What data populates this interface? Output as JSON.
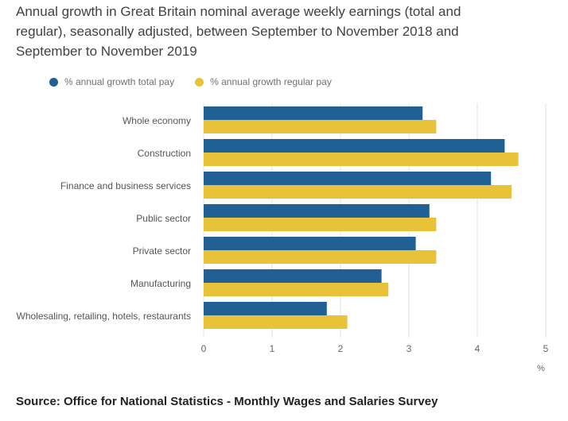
{
  "title": "Annual growth in Great Britain nominal average weekly earnings (total and regular), seasonally adjusted, between September to November 2018 and September to November 2019",
  "legend": [
    {
      "label": "% annual growth total pay",
      "color": "#206095"
    },
    {
      "label": "% annual growth regular pay",
      "color": "#e8c33a"
    }
  ],
  "source": "Source: Office for National Statistics - Monthly Wages and Salaries Survey",
  "chart_data": {
    "type": "bar",
    "orientation": "horizontal",
    "title": "Annual growth in Great Britain nominal average weekly earnings (total and regular), seasonally adjusted, between September to November 2018 and September to November 2019",
    "categories": [
      "Whole economy",
      "Construction",
      "Finance and business services",
      "Public sector",
      "Private sector",
      "Manufacturing",
      "Wholesaling, retailing, hotels, restaurants"
    ],
    "series": [
      {
        "name": "% annual growth total pay",
        "color": "#206095",
        "values": [
          3.2,
          4.4,
          4.2,
          3.3,
          3.1,
          2.6,
          1.8
        ]
      },
      {
        "name": "% annual growth regular pay",
        "color": "#e8c33a",
        "values": [
          3.4,
          4.6,
          4.5,
          3.4,
          3.4,
          2.7,
          2.1
        ]
      }
    ],
    "xlabel": "%",
    "ylabel": "",
    "xlim": [
      0,
      5
    ],
    "xticks": [
      0,
      1,
      2,
      3,
      4,
      5
    ],
    "grid": true,
    "legend_position": "top"
  }
}
